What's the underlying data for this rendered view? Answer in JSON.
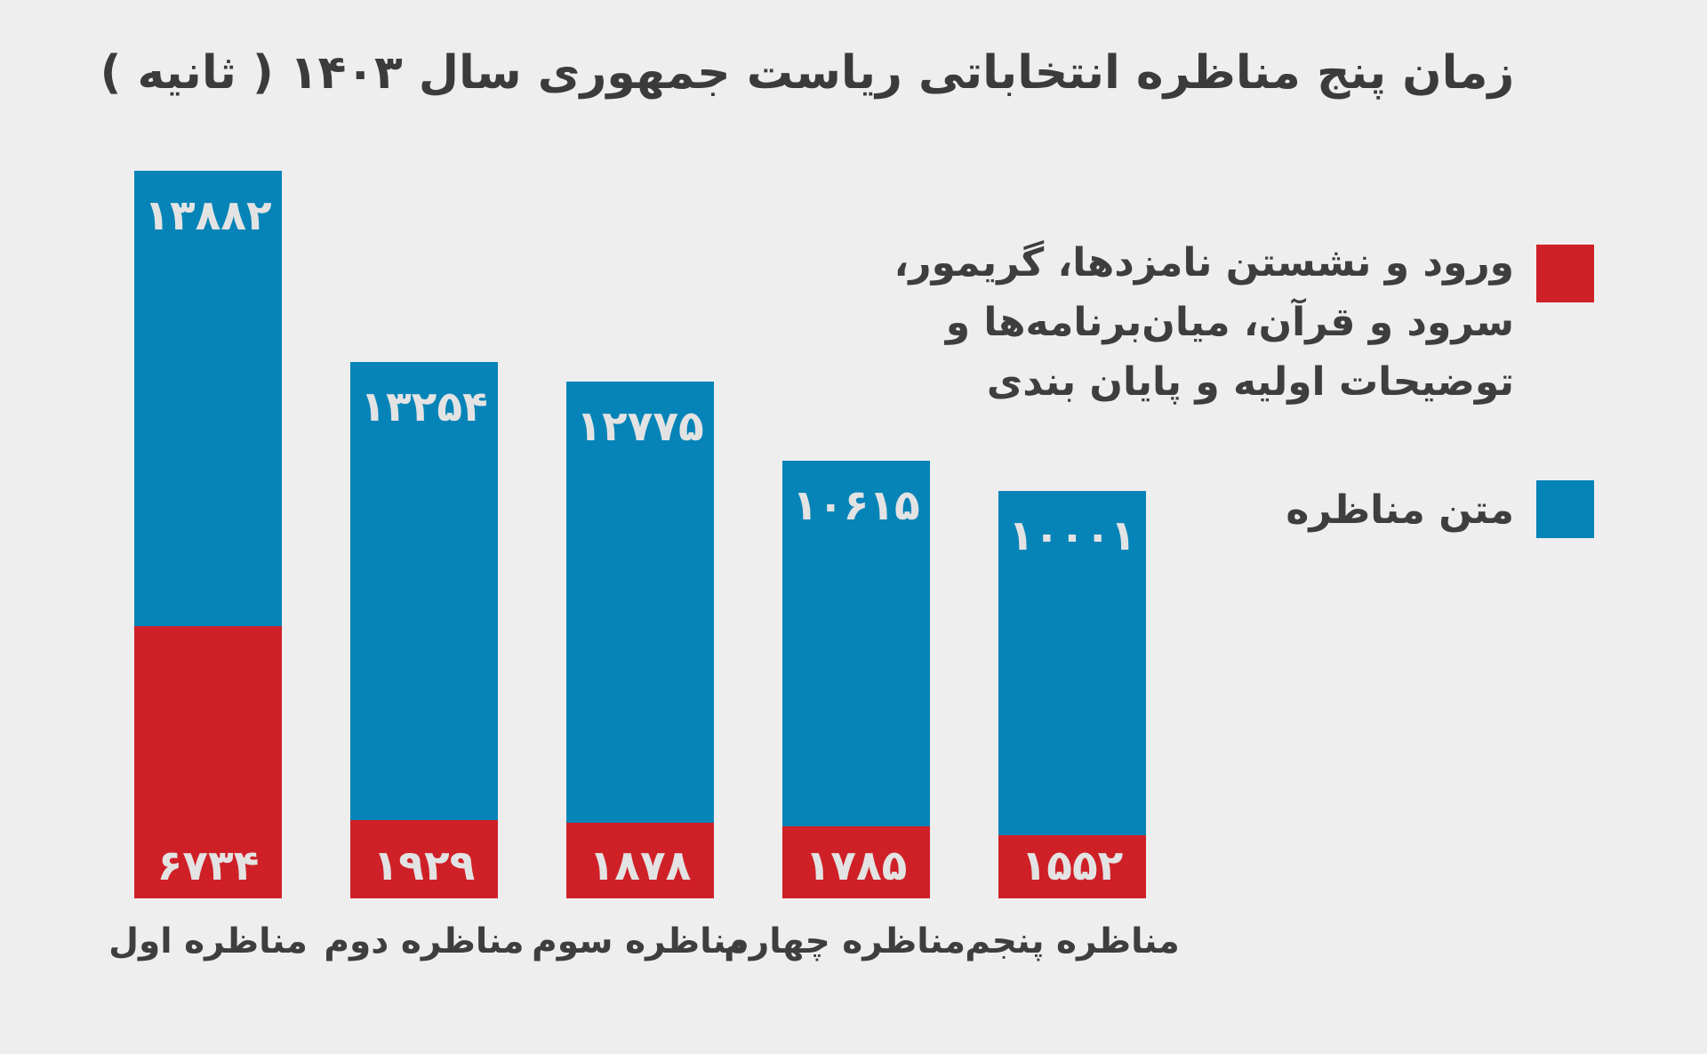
{
  "title": "زمان پنج مناظره انتخاباتی ریاست جمهوری سال ۱۴۰۳ ( ثانیه )",
  "legend": {
    "red_label_lines": [
      "ورود و نشستن نامزدها، گریمور،",
      "سرود و قرآن، میان‌برنامه‌ها و",
      "توضیحات اولیه و پایان بندی"
    ],
    "blue_label": "متن مناظره"
  },
  "colors": {
    "blue": "#0684b8",
    "red": "#cf2027",
    "background": "#eeeeee",
    "text": "#3e3e3e",
    "value_text": "#e3e3e3"
  },
  "chart_data": {
    "type": "bar",
    "stacked": true,
    "direction": "rtl",
    "title": "زمان پنج مناظره انتخاباتی ریاست جمهوری سال ۱۴۰۳ ( ثانیه )",
    "unit_label": "ثانیه",
    "categories": [
      "مناظره اول",
      "مناظره دوم",
      "مناظره سوم",
      "مناظره چهارم",
      "مناظره پنجم"
    ],
    "series": [
      {
        "name": "متن مناظره",
        "color_key": "blue",
        "values": [
          13882,
          13254,
          12775,
          10615,
          10001
        ],
        "value_labels_fa": [
          "۱۳۸۸۲",
          "۱۳۲۵۴",
          "۱۲۷۷۵",
          "۱۰۶۱۵",
          "۱۰۰۰۱"
        ]
      },
      {
        "name": "ورود و نشستن نامزدها، گریمور، سرود و قرآن، میان‌برنامه‌ها و توضیحات اولیه و پایان بندی",
        "color_key": "red",
        "values": [
          6734,
          1929,
          1878,
          1785,
          1552
        ],
        "value_labels_fa": [
          "۶۷۳۴",
          "۱۹۲۹",
          "۱۸۷۸",
          "۱۷۸۵",
          "۱۵۵۲"
        ]
      }
    ],
    "totals": [
      20616,
      15183,
      14653,
      12400,
      11553
    ],
    "legend_position": "right",
    "grid": false,
    "axes_shown": false
  }
}
